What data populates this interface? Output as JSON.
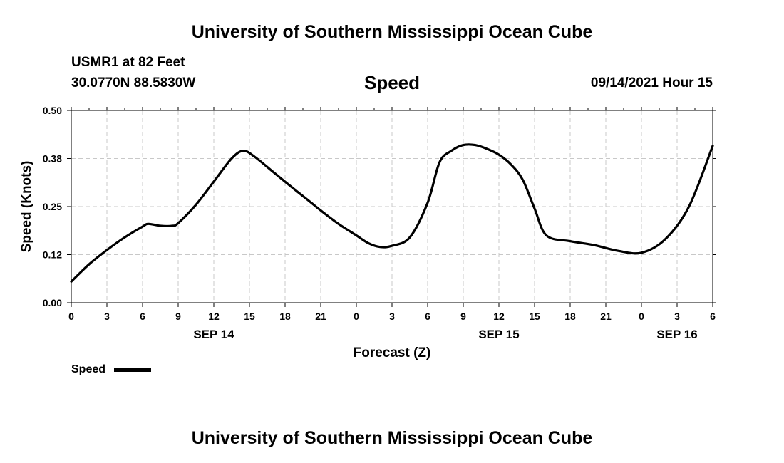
{
  "header": {
    "org_title": "University of Southern Mississippi Ocean Cube",
    "station": "USMR1 at 82 Feet",
    "coords": "30.0770N  88.5830W",
    "plot_title": "Speed",
    "run_date": "09/14/2021 Hour 15"
  },
  "footer": {
    "org_title": "University of Southern Mississippi Ocean Cube"
  },
  "legend": {
    "label": "Speed",
    "placement": "bottom-left"
  },
  "chart_data": {
    "type": "line",
    "title": "Speed",
    "xlabel": "Forecast (Z)",
    "ylabel": "Speed (Knots)",
    "ylim": [
      0,
      0.5
    ],
    "yticks": [
      "0.00",
      "0.12",
      "0.25",
      "0.38",
      "0.50"
    ],
    "xlim": [
      0,
      54
    ],
    "xtick_labels": [
      "0",
      "3",
      "6",
      "9",
      "12",
      "15",
      "18",
      "21",
      "0",
      "3",
      "6",
      "9",
      "12",
      "15",
      "18",
      "21",
      "0",
      "3",
      "6"
    ],
    "date_labels": [
      {
        "label": "SEP 14",
        "x": 12
      },
      {
        "label": "SEP 15",
        "x": 36
      },
      {
        "label": "SEP 16",
        "x": 51
      }
    ],
    "grid": true,
    "colors": {
      "line": "#000000",
      "grid": "#c8c8c8",
      "axis": "#000000"
    },
    "series": [
      {
        "name": "Speed",
        "x": [
          0,
          1.5,
          3,
          4.5,
          6,
          6.5,
          7.5,
          8.5,
          9,
          10.5,
          12,
          13.5,
          14.5,
          15.5,
          17,
          18.5,
          20,
          21,
          22.5,
          24,
          25,
          26,
          27,
          28.5,
          30,
          31,
          32,
          33,
          34,
          35,
          36,
          37,
          38,
          39,
          40,
          42,
          44,
          46,
          48,
          50,
          52,
          54
        ],
        "y": [
          0.055,
          0.1,
          0.137,
          0.17,
          0.198,
          0.205,
          0.2,
          0.2,
          0.207,
          0.255,
          0.315,
          0.375,
          0.395,
          0.378,
          0.34,
          0.302,
          0.265,
          0.24,
          0.205,
          0.175,
          0.155,
          0.145,
          0.148,
          0.17,
          0.26,
          0.365,
          0.395,
          0.41,
          0.41,
          0.4,
          0.385,
          0.36,
          0.32,
          0.245,
          0.175,
          0.16,
          0.15,
          0.135,
          0.13,
          0.165,
          0.25,
          0.408
        ]
      }
    ]
  }
}
